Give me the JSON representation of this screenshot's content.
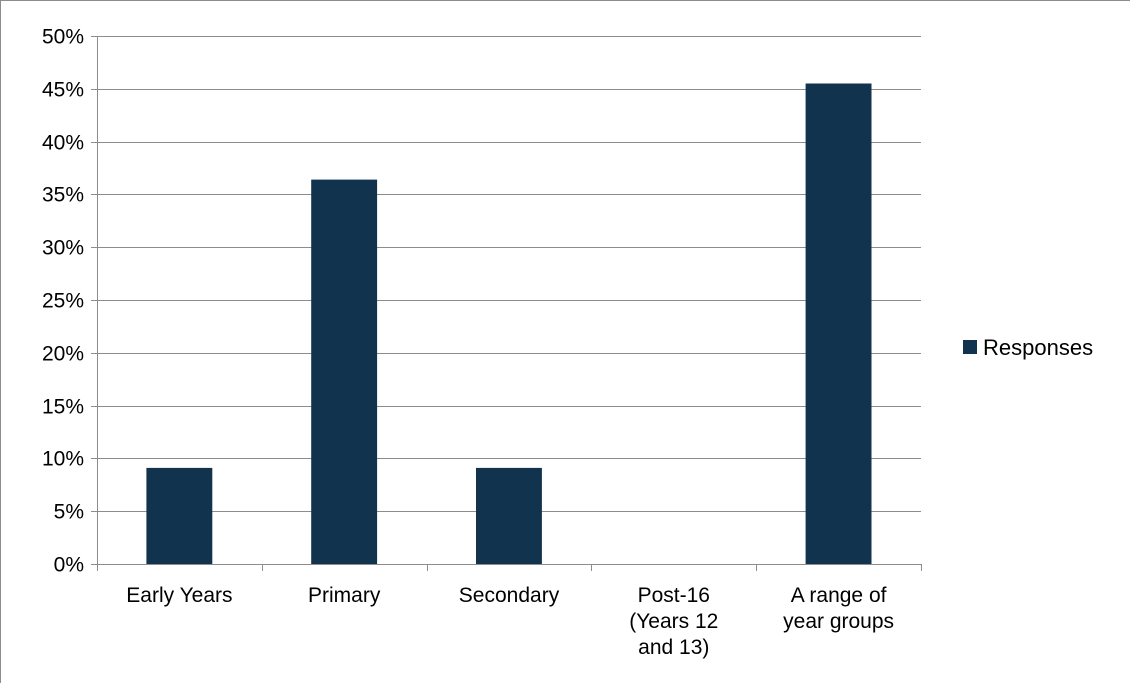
{
  "chart_data": {
    "type": "bar",
    "categories": [
      [
        "Early Years"
      ],
      [
        "Primary"
      ],
      [
        "Secondary"
      ],
      [
        "Post-16",
        "(Years 12",
        "and 13)"
      ],
      [
        "A range of",
        "year groups"
      ]
    ],
    "series": [
      {
        "name": "Responses",
        "values": [
          9.1,
          36.4,
          9.1,
          0,
          45.5
        ]
      }
    ],
    "ylim": [
      0,
      50
    ],
    "ytick_step": 5,
    "ytick_suffix": "%",
    "grid": true,
    "legend_position": "right",
    "title": "",
    "xlabel": "",
    "ylabel": ""
  },
  "colors": {
    "bar": "#12334e",
    "grid": "#8c8c8c",
    "axis": "#8c8c8c"
  }
}
